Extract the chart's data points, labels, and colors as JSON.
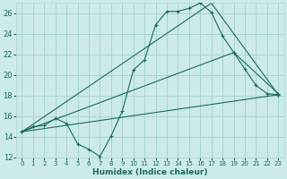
{
  "title": "",
  "xlabel": "Humidex (Indice chaleur)",
  "bg_color": "#cceae7",
  "line_color": "#1a6b5a",
  "grid_color": "#aad4ce",
  "xlim": [
    -0.5,
    23.5
  ],
  "ylim": [
    12,
    27
  ],
  "xticks": [
    0,
    1,
    2,
    3,
    4,
    5,
    6,
    7,
    8,
    9,
    10,
    11,
    12,
    13,
    14,
    15,
    16,
    17,
    18,
    19,
    20,
    21,
    22,
    23
  ],
  "yticks": [
    12,
    14,
    16,
    18,
    20,
    22,
    24,
    26
  ],
  "series0": {
    "x": [
      0,
      1,
      2,
      3,
      4,
      5,
      6,
      7,
      8,
      9,
      10,
      11,
      12,
      13,
      14,
      15,
      16,
      17,
      18,
      19,
      20,
      21,
      22,
      23
    ],
    "y": [
      14.5,
      15.0,
      15.1,
      15.8,
      15.3,
      13.3,
      12.8,
      12.1,
      14.1,
      16.5,
      20.5,
      21.5,
      24.9,
      26.2,
      26.2,
      26.5,
      27.0,
      26.1,
      23.8,
      22.2,
      20.6,
      19.0,
      18.2,
      18.1
    ]
  },
  "series1": {
    "x": [
      0,
      23
    ],
    "y": [
      14.5,
      18.1
    ]
  },
  "series2": {
    "x": [
      0,
      19,
      23
    ],
    "y": [
      14.5,
      22.2,
      18.2
    ]
  },
  "series3": {
    "x": [
      0,
      17,
      23
    ],
    "y": [
      14.5,
      27.0,
      18.1
    ]
  }
}
